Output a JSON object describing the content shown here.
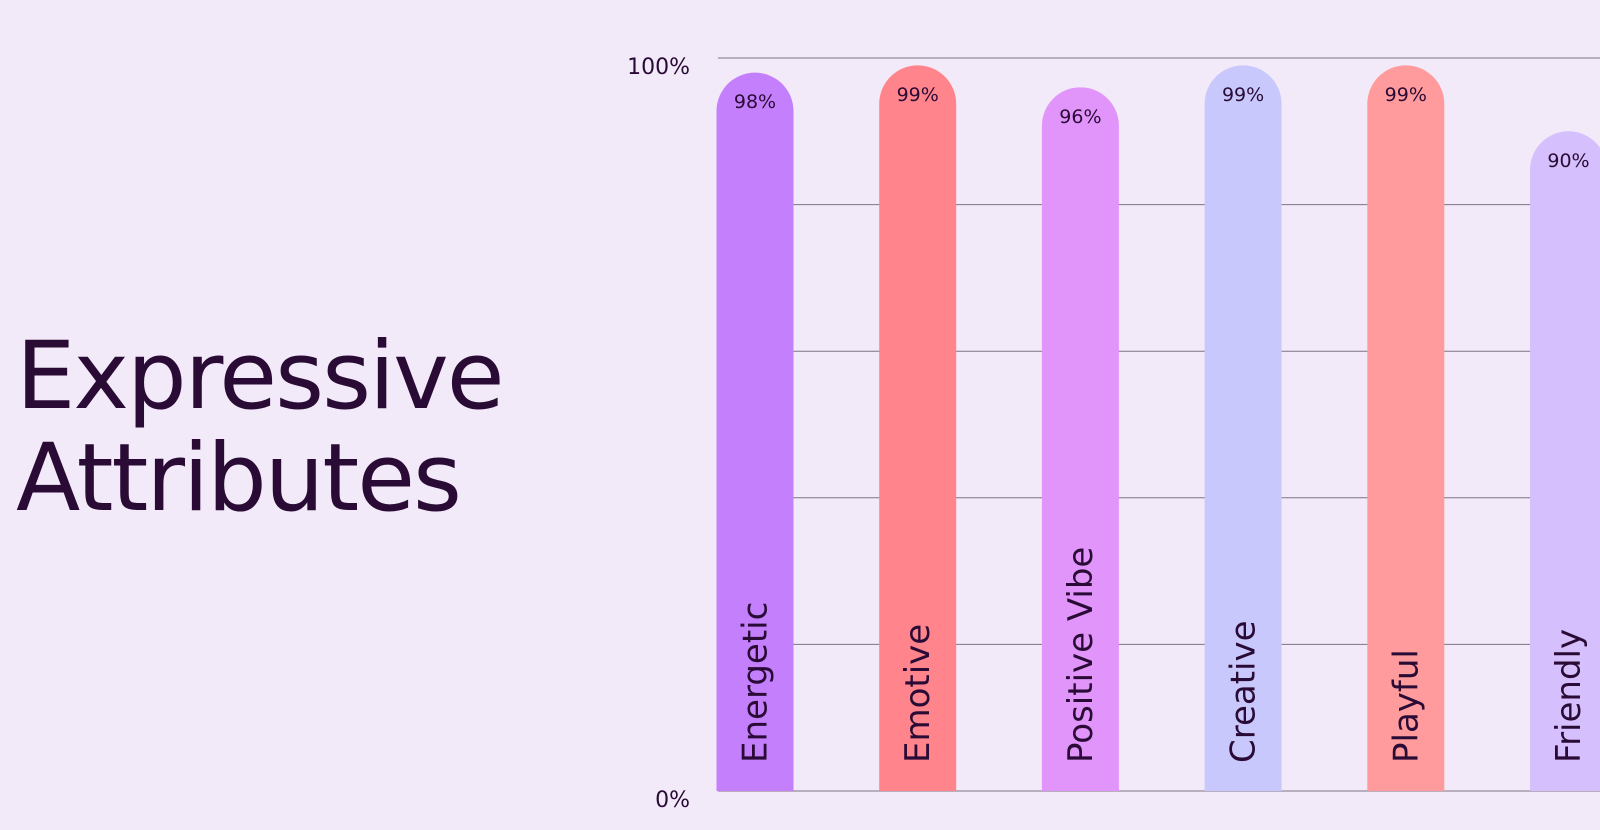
{
  "chart_data": {
    "type": "bar",
    "title": "Expressive Attributes",
    "categories": [
      "Energetic",
      "Emotive",
      "Positive Vibe",
      "Creative",
      "Playful",
      "Friendly"
    ],
    "values": [
      98,
      99,
      96,
      99,
      99,
      90
    ],
    "value_labels": [
      "98%",
      "99%",
      "96%",
      "99%",
      "99%",
      "90%"
    ],
    "colors": [
      "#c47ffc",
      "#ff848b",
      "#e195fb",
      "#c9c8fc",
      "#ff9b9c",
      "#d5bffc"
    ],
    "ylim": [
      0,
      100
    ],
    "yticks": [
      {
        "value": 0,
        "label": "0%"
      },
      {
        "value": 100,
        "label": "100%"
      }
    ],
    "ygrid": [
      20,
      40,
      60,
      80
    ],
    "grid": true
  }
}
